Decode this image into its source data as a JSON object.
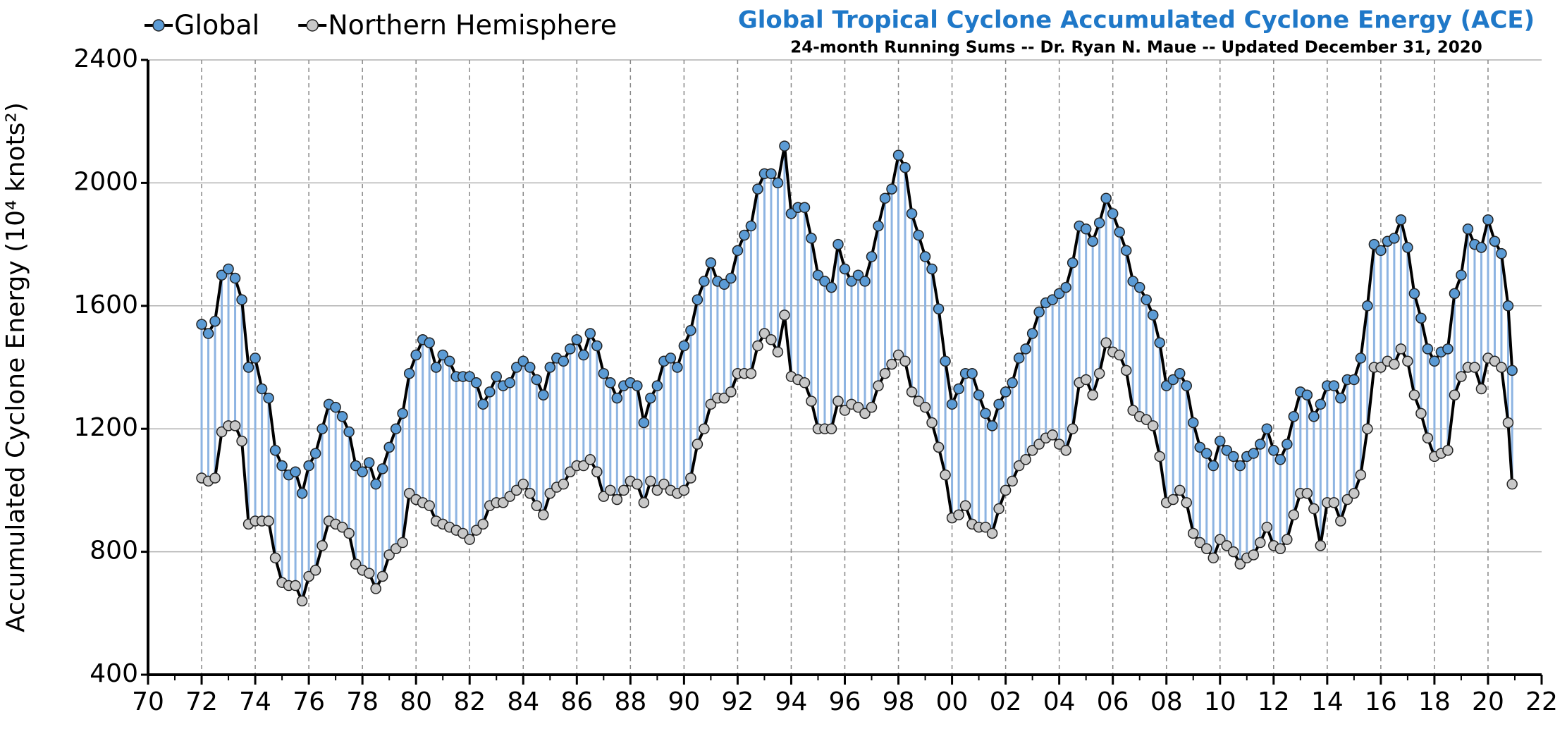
{
  "chart_data": {
    "type": "line",
    "title": "Global Tropical Cyclone Accumulated Cyclone Energy (ACE)",
    "subtitle": "24-month Running Sums -- Dr. Ryan N. Maue -- Updated December 31, 2020",
    "y_label": "Accumulated Cyclone Energy (10⁴ knots²)",
    "x": [
      1972,
      1972.25,
      1972.5,
      1972.75,
      1973,
      1973.25,
      1973.5,
      1973.75,
      1974,
      1974.25,
      1974.5,
      1974.75,
      1975,
      1975.25,
      1975.5,
      1975.75,
      1976,
      1976.25,
      1976.5,
      1976.75,
      1977,
      1977.25,
      1977.5,
      1977.75,
      1978,
      1978.25,
      1978.5,
      1978.75,
      1979,
      1979.25,
      1979.5,
      1979.75,
      1980,
      1980.25,
      1980.5,
      1980.75,
      1981,
      1981.25,
      1981.5,
      1981.75,
      1982,
      1982.25,
      1982.5,
      1982.75,
      1983,
      1983.25,
      1983.5,
      1983.75,
      1984,
      1984.25,
      1984.5,
      1984.75,
      1985,
      1985.25,
      1985.5,
      1985.75,
      1986,
      1986.25,
      1986.5,
      1986.75,
      1987,
      1987.25,
      1987.5,
      1987.75,
      1988,
      1988.25,
      1988.5,
      1988.75,
      1989,
      1989.25,
      1989.5,
      1989.75,
      1990,
      1990.25,
      1990.5,
      1990.75,
      1991,
      1991.25,
      1991.5,
      1991.75,
      1992,
      1992.25,
      1992.5,
      1992.75,
      1993,
      1993.25,
      1993.5,
      1993.75,
      1994,
      1994.25,
      1994.5,
      1994.75,
      1995,
      1995.25,
      1995.5,
      1995.75,
      1996,
      1996.25,
      1996.5,
      1996.75,
      1997,
      1997.25,
      1997.5,
      1997.75,
      1998,
      1998.25,
      1998.5,
      1998.75,
      1999,
      1999.25,
      1999.5,
      1999.75,
      2000,
      2000.25,
      2000.5,
      2000.75,
      2001,
      2001.25,
      2001.5,
      2001.75,
      2002,
      2002.25,
      2002.5,
      2002.75,
      2003,
      2003.25,
      2003.5,
      2003.75,
      2004,
      2004.25,
      2004.5,
      2004.75,
      2005,
      2005.25,
      2005.5,
      2005.75,
      2006,
      2006.25,
      2006.5,
      2006.75,
      2007,
      2007.25,
      2007.5,
      2007.75,
      2008,
      2008.25,
      2008.5,
      2008.75,
      2009,
      2009.25,
      2009.5,
      2009.75,
      2010,
      2010.25,
      2010.5,
      2010.75,
      2011,
      2011.25,
      2011.5,
      2011.75,
      2012,
      2012.25,
      2012.5,
      2012.75,
      2013,
      2013.25,
      2013.5,
      2013.75,
      2014,
      2014.25,
      2014.5,
      2014.75,
      2015,
      2015.25,
      2015.5,
      2015.75,
      2016,
      2016.25,
      2016.5,
      2016.75,
      2017,
      2017.25,
      2017.5,
      2017.75,
      2018,
      2018.25,
      2018.5,
      2018.75,
      2019,
      2019.25,
      2019.5,
      2019.75,
      2020,
      2020.25,
      2020.5,
      2020.75,
      2020.9
    ],
    "series": [
      {
        "name": "Global",
        "color": "#5b9bd5",
        "values": [
          1540,
          1510,
          1550,
          1700,
          1720,
          1690,
          1620,
          1400,
          1430,
          1330,
          1300,
          1130,
          1080,
          1050,
          1060,
          990,
          1080,
          1120,
          1200,
          1280,
          1270,
          1240,
          1190,
          1080,
          1060,
          1090,
          1020,
          1070,
          1140,
          1200,
          1250,
          1380,
          1440,
          1490,
          1480,
          1400,
          1440,
          1420,
          1370,
          1370,
          1370,
          1350,
          1280,
          1320,
          1370,
          1340,
          1350,
          1400,
          1420,
          1400,
          1360,
          1310,
          1400,
          1430,
          1420,
          1460,
          1490,
          1440,
          1510,
          1470,
          1380,
          1350,
          1300,
          1340,
          1350,
          1340,
          1220,
          1300,
          1340,
          1420,
          1430,
          1400,
          1470,
          1520,
          1620,
          1680,
          1740,
          1680,
          1670,
          1690,
          1780,
          1830,
          1860,
          1980,
          2030,
          2030,
          2000,
          2120,
          1900,
          1920,
          1920,
          1820,
          1700,
          1680,
          1660,
          1800,
          1720,
          1680,
          1700,
          1680,
          1760,
          1860,
          1950,
          1980,
          2090,
          2050,
          1900,
          1830,
          1760,
          1720,
          1590,
          1420,
          1280,
          1330,
          1380,
          1380,
          1310,
          1250,
          1210,
          1280,
          1320,
          1350,
          1430,
          1460,
          1510,
          1580,
          1610,
          1620,
          1640,
          1660,
          1740,
          1860,
          1850,
          1810,
          1870,
          1950,
          1900,
          1840,
          1780,
          1680,
          1660,
          1620,
          1570,
          1480,
          1340,
          1360,
          1380,
          1340,
          1220,
          1140,
          1120,
          1080,
          1160,
          1130,
          1110,
          1080,
          1110,
          1120,
          1150,
          1200,
          1130,
          1100,
          1150,
          1240,
          1320,
          1310,
          1240,
          1280,
          1340,
          1340,
          1300,
          1360,
          1360,
          1430,
          1600,
          1800,
          1780,
          1810,
          1820,
          1880,
          1790,
          1640,
          1560,
          1460,
          1420,
          1450,
          1460,
          1640,
          1700,
          1850,
          1800,
          1790,
          1880,
          1810,
          1770,
          1600,
          1390
        ]
      },
      {
        "name": "Northern Hemisphere",
        "color": "#c8c8c8",
        "values": [
          1040,
          1030,
          1040,
          1190,
          1210,
          1210,
          1160,
          890,
          900,
          900,
          900,
          780,
          700,
          690,
          690,
          640,
          720,
          740,
          820,
          900,
          890,
          880,
          860,
          760,
          740,
          730,
          680,
          720,
          790,
          810,
          830,
          990,
          970,
          960,
          950,
          900,
          890,
          880,
          870,
          860,
          840,
          870,
          890,
          950,
          960,
          960,
          980,
          1000,
          1020,
          990,
          950,
          920,
          990,
          1010,
          1020,
          1060,
          1080,
          1080,
          1100,
          1060,
          980,
          1000,
          970,
          1000,
          1030,
          1020,
          960,
          1030,
          1000,
          1020,
          1000,
          990,
          1000,
          1040,
          1150,
          1200,
          1280,
          1300,
          1300,
          1320,
          1380,
          1380,
          1380,
          1470,
          1510,
          1490,
          1450,
          1570,
          1370,
          1360,
          1350,
          1290,
          1200,
          1200,
          1200,
          1290,
          1260,
          1280,
          1270,
          1250,
          1270,
          1340,
          1380,
          1410,
          1440,
          1420,
          1320,
          1290,
          1270,
          1220,
          1140,
          1050,
          910,
          920,
          950,
          890,
          880,
          880,
          860,
          940,
          1000,
          1030,
          1080,
          1100,
          1130,
          1150,
          1170,
          1180,
          1150,
          1130,
          1200,
          1350,
          1360,
          1310,
          1380,
          1480,
          1450,
          1440,
          1390,
          1260,
          1240,
          1230,
          1210,
          1110,
          960,
          970,
          1000,
          960,
          860,
          830,
          810,
          780,
          840,
          820,
          800,
          760,
          780,
          790,
          830,
          880,
          820,
          810,
          840,
          920,
          990,
          990,
          940,
          820,
          960,
          960,
          900,
          970,
          990,
          1050,
          1200,
          1400,
          1400,
          1420,
          1410,
          1460,
          1420,
          1310,
          1250,
          1170,
          1110,
          1120,
          1130,
          1310,
          1370,
          1400,
          1400,
          1330,
          1430,
          1420,
          1400,
          1220,
          1020
        ]
      }
    ],
    "xlim": [
      1970,
      2022
    ],
    "xticks": [
      {
        "value": 1970,
        "label": "70"
      },
      {
        "value": 1972,
        "label": "72"
      },
      {
        "value": 1974,
        "label": "74"
      },
      {
        "value": 1976,
        "label": "76"
      },
      {
        "value": 1978,
        "label": "78"
      },
      {
        "value": 1980,
        "label": "80"
      },
      {
        "value": 1982,
        "label": "82"
      },
      {
        "value": 1984,
        "label": "84"
      },
      {
        "value": 1986,
        "label": "86"
      },
      {
        "value": 1988,
        "label": "88"
      },
      {
        "value": 1990,
        "label": "90"
      },
      {
        "value": 1992,
        "label": "92"
      },
      {
        "value": 1994,
        "label": "94"
      },
      {
        "value": 1996,
        "label": "96"
      },
      {
        "value": 1998,
        "label": "98"
      },
      {
        "value": 2000,
        "label": "00"
      },
      {
        "value": 2002,
        "label": "02"
      },
      {
        "value": 2004,
        "label": "04"
      },
      {
        "value": 2006,
        "label": "06"
      },
      {
        "value": 2008,
        "label": "08"
      },
      {
        "value": 2010,
        "label": "10"
      },
      {
        "value": 2012,
        "label": "12"
      },
      {
        "value": 2014,
        "label": "14"
      },
      {
        "value": 2016,
        "label": "16"
      },
      {
        "value": 2018,
        "label": "18"
      },
      {
        "value": 2020,
        "label": "20"
      },
      {
        "value": 2022,
        "label": "22"
      }
    ],
    "ylim": [
      400,
      2400
    ],
    "yticks": [
      400,
      800,
      1200,
      1600,
      2000,
      2400
    ],
    "grid": true,
    "legend": "top-left"
  }
}
